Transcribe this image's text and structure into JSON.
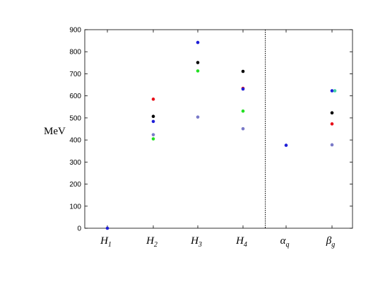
{
  "chart_data": {
    "type": "scatter",
    "ylabel": "MeV",
    "xlabel": "",
    "ylim": [
      0,
      900
    ],
    "yticks": [
      0,
      100,
      200,
      300,
      400,
      500,
      600,
      700,
      800,
      900
    ],
    "categories": [
      {
        "base": "H",
        "sub": "1"
      },
      {
        "base": "H",
        "sub": "2"
      },
      {
        "base": "H",
        "sub": "3"
      },
      {
        "base": "H",
        "sub": "4"
      },
      {
        "base": "α",
        "sub": "q"
      },
      {
        "base": "β",
        "sub": "g"
      }
    ],
    "separator_after_category": 3,
    "grid": false,
    "points": [
      {
        "category": 0,
        "y": 0,
        "color": "#1f1fd8"
      },
      {
        "category": 1,
        "y": 585,
        "color": "#e8101a"
      },
      {
        "category": 1,
        "y": 507,
        "color": "#000000"
      },
      {
        "category": 1,
        "y": 484,
        "color": "#1f1fd8"
      },
      {
        "category": 1,
        "y": 424,
        "color": "#7a7ac8"
      },
      {
        "category": 1,
        "y": 405,
        "color": "#22e022"
      },
      {
        "category": 2,
        "y": 842,
        "color": "#1f1fd8"
      },
      {
        "category": 2,
        "y": 751,
        "color": "#000000"
      },
      {
        "category": 2,
        "y": 713,
        "color": "#22e022"
      },
      {
        "category": 2,
        "y": 504,
        "color": "#7a7ac8"
      },
      {
        "category": 3,
        "y": 711,
        "color": "#000000"
      },
      {
        "category": 3,
        "y": 634,
        "color": "#e8101a"
      },
      {
        "category": 3,
        "y": 631,
        "color": "#1f1fd8"
      },
      {
        "category": 3,
        "y": 531,
        "color": "#22e022"
      },
      {
        "category": 3,
        "y": 451,
        "color": "#7a7ac8"
      },
      {
        "category": 4,
        "y": 376,
        "color": "#1f1fd8"
      },
      {
        "category": 5,
        "y": 623,
        "color": "#1f1fd8"
      },
      {
        "category": 5,
        "y": 623,
        "color": "#3fd0a8",
        "offset": 1
      },
      {
        "category": 5,
        "y": 523,
        "color": "#000000"
      },
      {
        "category": 5,
        "y": 473,
        "color": "#e8101a"
      },
      {
        "category": 5,
        "y": 378,
        "color": "#7a7ac8"
      }
    ]
  }
}
